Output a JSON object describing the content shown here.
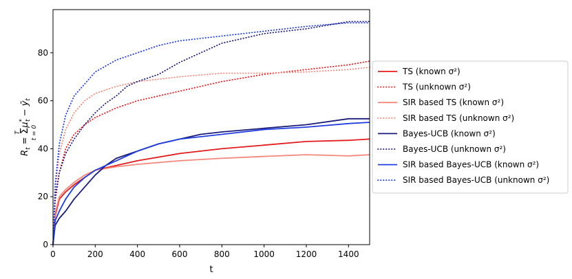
{
  "chart_data": {
    "type": "line",
    "xlabel": "t",
    "ylabel": "R_t = Σ_{t=0}^{T} μ*_t − ȳ_t",
    "xlim": [
      0,
      1500
    ],
    "ylim": [
      0,
      98
    ],
    "xticks": [
      0,
      200,
      400,
      600,
      800,
      1000,
      1200,
      1400
    ],
    "yticks": [
      0,
      20,
      40,
      60,
      80
    ],
    "grid": false,
    "legend_position": "right-outside",
    "series": [
      {
        "name": "TS (known σ²)",
        "color": "#e41a1c",
        "dash": "solid",
        "x": [
          0,
          10,
          30,
          60,
          100,
          150,
          200,
          300,
          400,
          600,
          800,
          1000,
          1200,
          1400,
          1500
        ],
        "y": [
          0,
          12,
          19,
          22,
          25,
          28,
          31,
          33,
          35,
          38,
          40,
          41.5,
          43,
          43.5,
          44
        ]
      },
      {
        "name": "TS (unknown σ²)",
        "color": "#e41a1c",
        "dash": "dotted",
        "x": [
          0,
          10,
          30,
          60,
          100,
          150,
          200,
          300,
          400,
          600,
          800,
          1000,
          1200,
          1400,
          1500
        ],
        "y": [
          0,
          18,
          30,
          40,
          46,
          50,
          53,
          57,
          60,
          64,
          68,
          71,
          73,
          75,
          76.5
        ]
      },
      {
        "name": "SIR based TS (known σ²)",
        "color": "#f4877a",
        "dash": "solid",
        "x": [
          0,
          10,
          30,
          60,
          100,
          150,
          200,
          300,
          400,
          600,
          800,
          1000,
          1200,
          1400,
          1500
        ],
        "y": [
          0,
          13,
          20,
          23,
          26,
          29,
          31,
          32.5,
          33.5,
          35,
          36,
          36.8,
          37.5,
          37,
          37.5
        ]
      },
      {
        "name": "SIR based TS (unknown σ²)",
        "color": "#f4877a",
        "dash": "dotted",
        "x": [
          0,
          10,
          30,
          60,
          100,
          150,
          200,
          300,
          400,
          600,
          800,
          1000,
          1200,
          1400,
          1500
        ],
        "y": [
          0,
          22,
          38,
          48,
          55,
          60,
          63,
          66,
          68,
          70,
          71.5,
          71.5,
          72,
          73,
          74
        ]
      },
      {
        "name": "Bayes-UCB (known σ²)",
        "color": "#1a1a7a",
        "dash": "solid",
        "x": [
          0,
          10,
          30,
          60,
          100,
          150,
          200,
          250,
          300,
          400,
          500,
          600,
          700,
          800,
          1000,
          1200,
          1400,
          1500
        ],
        "y": [
          0,
          8,
          11,
          14,
          19,
          24,
          29,
          33,
          36,
          39,
          42,
          44,
          46,
          47,
          48.5,
          50,
          52.5,
          52.5
        ]
      },
      {
        "name": "Bayes-UCB (unknown σ²)",
        "color": "#1a1a7a",
        "dash": "dotted",
        "x": [
          0,
          10,
          30,
          60,
          100,
          150,
          200,
          250,
          300,
          350,
          400,
          500,
          600,
          700,
          800,
          1000,
          1200,
          1400,
          1500
        ],
        "y": [
          0,
          20,
          30,
          38,
          44,
          50,
          55,
          59,
          62,
          66,
          68,
          71,
          76,
          80,
          84,
          88,
          90,
          93,
          93
        ]
      },
      {
        "name": "SIR based Bayes-UCB (known σ²)",
        "color": "#1f3de0",
        "dash": "solid",
        "x": [
          0,
          10,
          30,
          60,
          100,
          150,
          200,
          300,
          400,
          500,
          600,
          800,
          1000,
          1200,
          1400,
          1500
        ],
        "y": [
          0,
          10,
          14,
          19,
          24,
          28,
          31,
          35,
          39,
          42,
          44,
          46,
          48,
          49,
          50.5,
          51
        ]
      },
      {
        "name": "SIR based Bayes-UCB (unknown σ²)",
        "color": "#1f3de0",
        "dash": "dotted",
        "x": [
          0,
          10,
          30,
          60,
          100,
          150,
          200,
          300,
          400,
          500,
          600,
          800,
          1000,
          1200,
          1400,
          1500
        ],
        "y": [
          0,
          25,
          42,
          54,
          62,
          67,
          72,
          77,
          80,
          83,
          85,
          87,
          89,
          91,
          92.5,
          92.5
        ]
      }
    ]
  }
}
